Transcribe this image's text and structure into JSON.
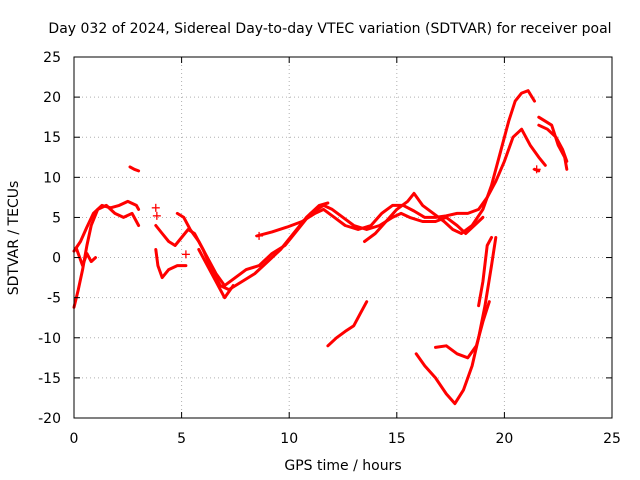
{
  "chart_data": {
    "type": "scatter",
    "title": "Day 032 of 2024, Sidereal Day-to-day VTEC variation (SDTVAR) for receiver poal",
    "xlabel": "GPS time / hours",
    "ylabel": "SDTVAR / TECUs",
    "xlim": [
      0,
      25
    ],
    "ylim": [
      -20,
      25
    ],
    "xticks": [
      0,
      5,
      10,
      15,
      20,
      25
    ],
    "yticks": [
      -20,
      -15,
      -10,
      -5,
      0,
      5,
      10,
      15,
      20,
      25
    ],
    "grid": true,
    "marker": "+",
    "color": "#ff0000",
    "series": [
      {
        "name": "track-1",
        "points": [
          [
            0.0,
            -6.2
          ],
          [
            0.2,
            -4.0
          ],
          [
            0.4,
            -1.5
          ],
          [
            0.6,
            1.5
          ],
          [
            0.8,
            4.0
          ],
          [
            1.1,
            6.0
          ],
          [
            1.5,
            6.5
          ],
          [
            1.9,
            5.5
          ],
          [
            2.3,
            5.0
          ],
          [
            2.7,
            5.5
          ],
          [
            3.0,
            4.0
          ]
        ]
      },
      {
        "name": "track-2",
        "points": [
          [
            0.0,
            0.8
          ],
          [
            0.3,
            2.0
          ],
          [
            0.6,
            3.8
          ],
          [
            0.9,
            5.5
          ],
          [
            1.3,
            6.5
          ],
          [
            1.7,
            6.2
          ],
          [
            2.1,
            6.5
          ],
          [
            2.5,
            7.0
          ],
          [
            2.9,
            6.5
          ],
          [
            3.0,
            6.0
          ]
        ]
      },
      {
        "name": "track-3",
        "points": [
          [
            0.1,
            1.2
          ],
          [
            0.4,
            -1.0
          ],
          [
            0.6,
            0.5
          ],
          [
            0.8,
            -0.5
          ],
          [
            1.0,
            0.0
          ]
        ]
      },
      {
        "name": "track-4",
        "points": [
          [
            2.6,
            11.3
          ],
          [
            2.8,
            11.0
          ],
          [
            3.0,
            10.8
          ]
        ]
      },
      {
        "name": "track-5",
        "points": [
          [
            3.8,
            4.0
          ],
          [
            4.1,
            3.0
          ],
          [
            4.4,
            2.0
          ],
          [
            4.7,
            1.5
          ],
          [
            5.0,
            2.5
          ],
          [
            5.3,
            3.5
          ],
          [
            5.6,
            3.0
          ],
          [
            6.0,
            1.0
          ],
          [
            6.4,
            -1.5
          ],
          [
            6.8,
            -3.5
          ],
          [
            7.2,
            -4.0
          ],
          [
            7.8,
            -3.0
          ],
          [
            8.4,
            -2.0
          ],
          [
            9.0,
            -0.5
          ],
          [
            9.6,
            1.0
          ],
          [
            10.2,
            3.0
          ],
          [
            10.8,
            5.0
          ],
          [
            11.4,
            6.5
          ],
          [
            11.8,
            6.8
          ]
        ]
      },
      {
        "name": "track-6",
        "points": [
          [
            3.8,
            1.0
          ],
          [
            3.9,
            -1.0
          ],
          [
            4.1,
            -2.5
          ],
          [
            4.4,
            -1.5
          ],
          [
            4.8,
            -1.0
          ],
          [
            5.2,
            -1.0
          ]
        ]
      },
      {
        "name": "track-7",
        "points": [
          [
            4.8,
            5.5
          ],
          [
            5.1,
            5.0
          ],
          [
            5.4,
            3.5
          ],
          [
            5.8,
            2.0
          ],
          [
            6.2,
            0.0
          ],
          [
            6.6,
            -2.0
          ],
          [
            7.0,
            -3.5
          ],
          [
            7.5,
            -2.5
          ],
          [
            8.0,
            -1.5
          ],
          [
            8.6,
            -1.0
          ],
          [
            9.2,
            0.5
          ],
          [
            9.8,
            1.5
          ],
          [
            10.4,
            3.5
          ],
          [
            11.0,
            5.5
          ],
          [
            11.6,
            6.5
          ],
          [
            12.0,
            6.0
          ],
          [
            12.5,
            5.0
          ],
          [
            13.0,
            4.0
          ],
          [
            13.6,
            3.5
          ],
          [
            14.2,
            4.0
          ],
          [
            14.8,
            5.0
          ],
          [
            15.2,
            5.5
          ],
          [
            15.6,
            5.0
          ],
          [
            16.2,
            4.5
          ],
          [
            16.8,
            4.5
          ],
          [
            17.3,
            5.0
          ],
          [
            17.8,
            4.0
          ],
          [
            18.2,
            3.0
          ],
          [
            18.6,
            4.0
          ],
          [
            19.0,
            5.0
          ]
        ]
      },
      {
        "name": "track-8",
        "points": [
          [
            5.8,
            1.0
          ],
          [
            6.2,
            -1.0
          ],
          [
            6.6,
            -3.0
          ],
          [
            7.0,
            -5.0
          ],
          [
            7.4,
            -3.5
          ]
        ]
      },
      {
        "name": "track-9",
        "points": [
          [
            8.5,
            2.7
          ],
          [
            9.2,
            3.2
          ],
          [
            9.9,
            3.8
          ],
          [
            10.6,
            4.5
          ],
          [
            11.2,
            5.5
          ],
          [
            11.6,
            6.0
          ],
          [
            12.1,
            5.0
          ],
          [
            12.6,
            4.0
          ],
          [
            13.2,
            3.5
          ],
          [
            13.8,
            4.0
          ],
          [
            14.3,
            5.5
          ],
          [
            14.8,
            6.5
          ],
          [
            15.3,
            6.5
          ],
          [
            15.8,
            5.8
          ],
          [
            16.3,
            5.0
          ],
          [
            16.8,
            5.0
          ],
          [
            17.3,
            5.2
          ],
          [
            17.8,
            5.5
          ],
          [
            18.3,
            5.5
          ],
          [
            18.8,
            6.0
          ],
          [
            19.2,
            7.5
          ],
          [
            19.6,
            9.5
          ],
          [
            20.0,
            12.0
          ],
          [
            20.4,
            15.0
          ],
          [
            20.8,
            16.0
          ],
          [
            21.2,
            14.0
          ],
          [
            21.6,
            12.5
          ],
          [
            21.9,
            11.5
          ]
        ]
      },
      {
        "name": "track-10",
        "points": [
          [
            13.5,
            2.0
          ],
          [
            14.0,
            3.0
          ],
          [
            14.5,
            4.5
          ],
          [
            15.0,
            6.0
          ],
          [
            15.5,
            7.0
          ],
          [
            15.8,
            8.0
          ],
          [
            16.2,
            6.5
          ],
          [
            16.7,
            5.5
          ],
          [
            17.2,
            4.5
          ],
          [
            17.6,
            3.5
          ],
          [
            18.0,
            3.0
          ],
          [
            18.5,
            4.0
          ],
          [
            19.0,
            6.0
          ],
          [
            19.4,
            9.0
          ],
          [
            19.8,
            13.0
          ],
          [
            20.2,
            17.0
          ],
          [
            20.5,
            19.5
          ],
          [
            20.8,
            20.5
          ],
          [
            21.1,
            20.8
          ],
          [
            21.4,
            19.5
          ]
        ]
      },
      {
        "name": "track-11",
        "points": [
          [
            11.8,
            -11.0
          ],
          [
            12.2,
            -10.0
          ],
          [
            12.6,
            -9.2
          ],
          [
            13.0,
            -8.5
          ],
          [
            13.3,
            -7.0
          ],
          [
            13.6,
            -5.5
          ]
        ]
      },
      {
        "name": "track-12",
        "points": [
          [
            15.9,
            -12.0
          ],
          [
            16.3,
            -13.5
          ],
          [
            16.8,
            -15.0
          ],
          [
            17.3,
            -17.0
          ],
          [
            17.7,
            -18.2
          ],
          [
            18.1,
            -16.5
          ],
          [
            18.5,
            -13.5
          ],
          [
            18.8,
            -10.0
          ],
          [
            19.1,
            -6.0
          ],
          [
            19.4,
            -1.0
          ],
          [
            19.6,
            2.5
          ]
        ]
      },
      {
        "name": "track-13",
        "points": [
          [
            16.8,
            -11.2
          ],
          [
            17.3,
            -11.0
          ],
          [
            17.8,
            -12.0
          ],
          [
            18.3,
            -12.5
          ],
          [
            18.7,
            -11.0
          ],
          [
            19.0,
            -8.0
          ],
          [
            19.3,
            -5.5
          ]
        ]
      },
      {
        "name": "track-14",
        "points": [
          [
            18.8,
            -6.0
          ],
          [
            19.0,
            -3.0
          ],
          [
            19.2,
            1.5
          ],
          [
            19.4,
            2.5
          ]
        ]
      },
      {
        "name": "track-15",
        "points": [
          [
            21.6,
            17.5
          ],
          [
            21.9,
            17.0
          ],
          [
            22.2,
            16.5
          ],
          [
            22.5,
            14.0
          ],
          [
            22.8,
            12.5
          ],
          [
            22.9,
            11.0
          ]
        ]
      },
      {
        "name": "track-16",
        "points": [
          [
            21.6,
            16.5
          ],
          [
            22.0,
            16.0
          ],
          [
            22.4,
            15.0
          ],
          [
            22.7,
            13.5
          ],
          [
            22.9,
            12.0
          ]
        ]
      },
      {
        "name": "track-17",
        "points": [
          [
            21.4,
            11.0
          ],
          [
            21.6,
            10.8
          ]
        ]
      }
    ],
    "scatter_plus": [
      [
        3.8,
        6.2
      ],
      [
        3.85,
        5.2
      ],
      [
        5.2,
        0.4
      ],
      [
        8.6,
        2.7
      ],
      [
        21.5,
        11.0
      ]
    ]
  }
}
